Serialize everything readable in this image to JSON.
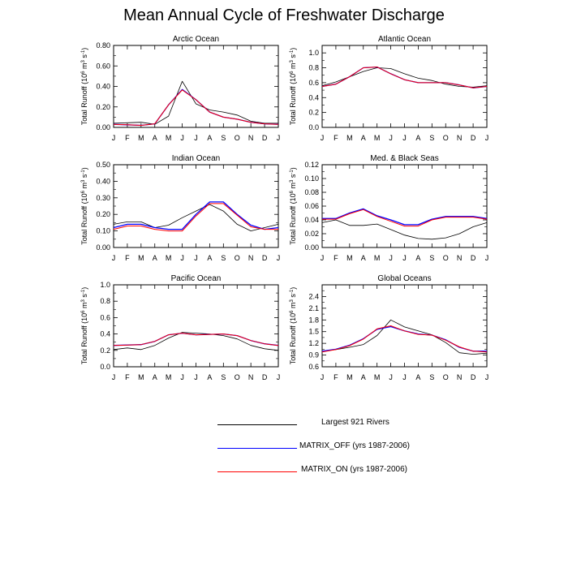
{
  "title": "Mean Annual Cycle of Freshwater Discharge",
  "months": [
    "J",
    "F",
    "M",
    "A",
    "M",
    "J",
    "J",
    "A",
    "S",
    "O",
    "N",
    "D",
    "J"
  ],
  "ylabel_main": "Total Runoff (10",
  "ylabel_exp": "6",
  "ylabel_tail": " m",
  "ylabel_exp2": "3",
  "ylabel_tail2": " s",
  "ylabel_exp3": "-1",
  "ylabel_close": ")",
  "colors": {
    "obs": "#000000",
    "matrix_off": "#0000ff",
    "matrix_on": "#ff0000"
  },
  "legend": [
    {
      "label": "Largest 921 Rivers",
      "color": "#000000"
    },
    {
      "label": "MATRIX_OFF (yrs 1987-2006)",
      "color": "#0000ff"
    },
    {
      "label": "MATRIX_ON (yrs 1987-2006)",
      "color": "#ff0000"
    }
  ],
  "chart_data": [
    {
      "type": "line",
      "title": "Arctic Ocean",
      "ylim": [
        0,
        0.8
      ],
      "yticks": [
        "0.00",
        "0.20",
        "0.40",
        "0.60",
        "0.80"
      ],
      "ytick_values": [
        0,
        0.2,
        0.4,
        0.6,
        0.8
      ],
      "series": [
        {
          "name": "Largest 921 Rivers",
          "values": [
            0.04,
            0.045,
            0.05,
            0.03,
            0.11,
            0.45,
            0.23,
            0.17,
            0.15,
            0.12,
            0.06,
            0.04,
            0.04
          ]
        },
        {
          "name": "MATRIX_OFF (yrs 1987-2006)",
          "values": [
            0.03,
            0.025,
            0.02,
            0.035,
            0.22,
            0.37,
            0.27,
            0.15,
            0.1,
            0.08,
            0.05,
            0.035,
            0.03
          ]
        },
        {
          "name": "MATRIX_ON (yrs 1987-2006)",
          "values": [
            0.03,
            0.025,
            0.02,
            0.035,
            0.22,
            0.365,
            0.27,
            0.15,
            0.1,
            0.08,
            0.05,
            0.035,
            0.03
          ]
        }
      ]
    },
    {
      "type": "line",
      "title": "Atlantic Ocean",
      "ylim": [
        0,
        1.1
      ],
      "yticks": [
        "0.0",
        "0.2",
        "0.4",
        "0.6",
        "0.8",
        "1.0"
      ],
      "ytick_values": [
        0,
        0.2,
        0.4,
        0.6,
        0.8,
        1.0
      ],
      "series": [
        {
          "name": "Largest 921 Rivers",
          "values": [
            0.56,
            0.61,
            0.68,
            0.75,
            0.8,
            0.79,
            0.72,
            0.66,
            0.63,
            0.58,
            0.55,
            0.54,
            0.56
          ]
        },
        {
          "name": "MATRIX_OFF (yrs 1987-2006)",
          "values": [
            0.55,
            0.58,
            0.68,
            0.8,
            0.81,
            0.72,
            0.64,
            0.6,
            0.6,
            0.6,
            0.57,
            0.53,
            0.55
          ]
        },
        {
          "name": "MATRIX_ON (yrs 1987-2006)",
          "values": [
            0.55,
            0.58,
            0.68,
            0.8,
            0.81,
            0.72,
            0.64,
            0.6,
            0.6,
            0.6,
            0.57,
            0.53,
            0.55
          ]
        }
      ]
    },
    {
      "type": "line",
      "title": "Indian Ocean",
      "ylim": [
        0,
        0.5
      ],
      "yticks": [
        "0.00",
        "0.10",
        "0.20",
        "0.30",
        "0.40",
        "0.50"
      ],
      "ytick_values": [
        0,
        0.1,
        0.2,
        0.3,
        0.4,
        0.5
      ],
      "series": [
        {
          "name": "Largest 921 Rivers",
          "values": [
            0.14,
            0.155,
            0.155,
            0.12,
            0.135,
            0.18,
            0.22,
            0.26,
            0.22,
            0.14,
            0.1,
            0.12,
            0.14
          ]
        },
        {
          "name": "MATRIX_OFF (yrs 1987-2006)",
          "values": [
            0.12,
            0.14,
            0.14,
            0.12,
            0.11,
            0.11,
            0.2,
            0.275,
            0.275,
            0.2,
            0.135,
            0.11,
            0.12
          ]
        },
        {
          "name": "MATRIX_ON (yrs 1987-2006)",
          "values": [
            0.11,
            0.13,
            0.13,
            0.11,
            0.1,
            0.1,
            0.19,
            0.265,
            0.265,
            0.195,
            0.125,
            0.11,
            0.11
          ]
        }
      ]
    },
    {
      "type": "line",
      "title": "Med. & Black Seas",
      "ylim": [
        0,
        0.12
      ],
      "yticks": [
        "0.00",
        "0.02",
        "0.04",
        "0.06",
        "0.08",
        "0.10",
        "0.12"
      ],
      "ytick_values": [
        0,
        0.02,
        0.04,
        0.06,
        0.08,
        0.1,
        0.12
      ],
      "series": [
        {
          "name": "Largest 921 Rivers",
          "values": [
            0.036,
            0.04,
            0.032,
            0.032,
            0.034,
            0.026,
            0.018,
            0.013,
            0.012,
            0.014,
            0.02,
            0.03,
            0.036
          ]
        },
        {
          "name": "MATRIX_OFF (yrs 1987-2006)",
          "values": [
            0.042,
            0.042,
            0.05,
            0.056,
            0.046,
            0.04,
            0.033,
            0.033,
            0.041,
            0.045,
            0.045,
            0.045,
            0.042
          ]
        },
        {
          "name": "MATRIX_ON (yrs 1987-2006)",
          "values": [
            0.041,
            0.041,
            0.049,
            0.055,
            0.045,
            0.038,
            0.031,
            0.031,
            0.04,
            0.044,
            0.044,
            0.044,
            0.041
          ]
        }
      ]
    },
    {
      "type": "line",
      "title": "Pacific Ocean",
      "ylim": [
        0,
        1.0
      ],
      "yticks": [
        "0.0",
        "0.2",
        "0.4",
        "0.6",
        "0.8",
        "1.0"
      ],
      "ytick_values": [
        0,
        0.2,
        0.4,
        0.6,
        0.8,
        1.0
      ],
      "series": [
        {
          "name": "Largest 921 Rivers",
          "values": [
            0.21,
            0.23,
            0.21,
            0.26,
            0.35,
            0.42,
            0.41,
            0.4,
            0.38,
            0.34,
            0.26,
            0.22,
            0.2
          ]
        },
        {
          "name": "MATRIX_OFF (yrs 1987-2006)",
          "values": [
            0.26,
            0.265,
            0.27,
            0.31,
            0.39,
            0.41,
            0.39,
            0.395,
            0.4,
            0.38,
            0.32,
            0.28,
            0.26
          ]
        },
        {
          "name": "MATRIX_ON (yrs 1987-2006)",
          "values": [
            0.26,
            0.265,
            0.27,
            0.31,
            0.39,
            0.41,
            0.39,
            0.395,
            0.4,
            0.38,
            0.32,
            0.28,
            0.26
          ]
        }
      ]
    },
    {
      "type": "line",
      "title": "Global Oceans",
      "ylim": [
        0.6,
        2.7
      ],
      "yticks": [
        "0.6",
        "0.9",
        "1.2",
        "1.5",
        "1.8",
        "2.1",
        "2.4"
      ],
      "ytick_values": [
        0.6,
        0.9,
        1.2,
        1.5,
        1.8,
        2.1,
        2.4
      ],
      "series": [
        {
          "name": "Largest 921 Rivers",
          "values": [
            1.0,
            1.04,
            1.1,
            1.17,
            1.4,
            1.8,
            1.62,
            1.52,
            1.42,
            1.22,
            0.96,
            0.92,
            0.95
          ]
        },
        {
          "name": "MATRIX_OFF (yrs 1987-2006)",
          "values": [
            1.0,
            1.05,
            1.15,
            1.32,
            1.56,
            1.63,
            1.52,
            1.44,
            1.41,
            1.29,
            1.1,
            1.0,
            1.0
          ]
        },
        {
          "name": "MATRIX_ON (yrs 1987-2006)",
          "values": [
            0.98,
            1.04,
            1.14,
            1.31,
            1.57,
            1.65,
            1.52,
            1.43,
            1.41,
            1.28,
            1.11,
            1.0,
            0.98
          ]
        }
      ]
    }
  ]
}
